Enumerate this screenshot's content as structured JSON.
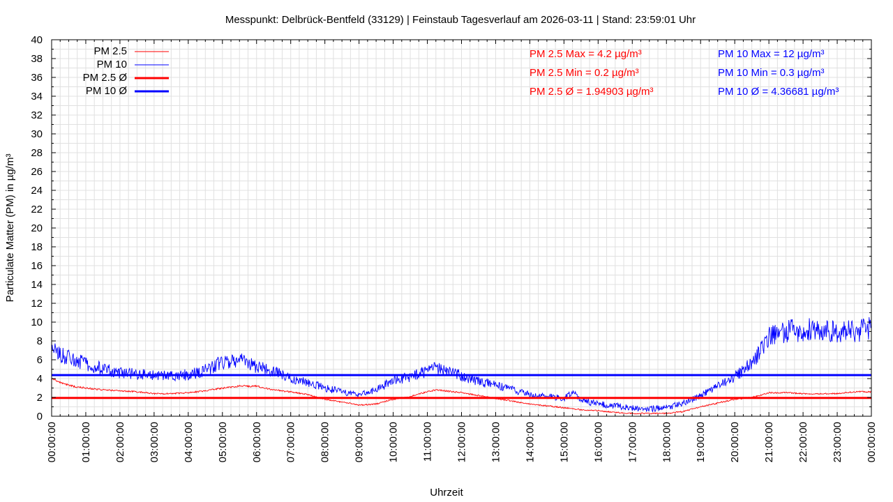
{
  "chart_data": {
    "type": "line",
    "title": "Messpunkt: Delbrück-Bentfeld (33129) | Feinstaub Tagesverlauf am 2026-03-11 | Stand: 23:59:01 Uhr",
    "xlabel": "Uhrzeit",
    "ylabel": "Particulate Matter (PM) in µg/m³",
    "xlim": [
      "00:00:00",
      "24:00:00"
    ],
    "ylim": [
      0,
      40
    ],
    "x_ticks": [
      "00:00:00",
      "01:00:00",
      "02:00:00",
      "03:00:00",
      "04:00:00",
      "05:00:00",
      "06:00:00",
      "07:00:00",
      "08:00:00",
      "09:00:00",
      "10:00:00",
      "11:00:00",
      "12:00:00",
      "13:00:00",
      "14:00:00",
      "15:00:00",
      "16:00:00",
      "17:00:00",
      "18:00:00",
      "19:00:00",
      "20:00:00",
      "21:00:00",
      "22:00:00",
      "23:00:00",
      "00:00:00"
    ],
    "y_ticks": [
      "0",
      "2",
      "4",
      "6",
      "8",
      "10",
      "12",
      "14",
      "16",
      "18",
      "20",
      "22",
      "24",
      "26",
      "28",
      "30",
      "32",
      "34",
      "36",
      "38",
      "40"
    ],
    "grid": true,
    "legend_position": "top-left",
    "legend": [
      {
        "label": "PM 2.5",
        "color": "#ff0000",
        "style": "thin"
      },
      {
        "label": "PM 10",
        "color": "#0000ff",
        "style": "thin"
      },
      {
        "label": "PM 2.5 Ø",
        "color": "#ff0000",
        "style": "thick"
      },
      {
        "label": "PM 10 Ø",
        "color": "#0000ff",
        "style": "thick"
      }
    ],
    "annotations": {
      "pm25": [
        "PM 2.5 Max = 4.2 µg/m³",
        "PM 2.5 Min = 0.2 µg/m³",
        "PM 2.5 Ø = 1.94903 µg/m³"
      ],
      "pm10": [
        "PM 10 Max = 12 µg/m³",
        "PM 10 Min = 0.3 µg/m³",
        "PM 10 Ø = 4.36681 µg/m³"
      ]
    },
    "x_hours": [
      0,
      0.25,
      0.5,
      0.75,
      1,
      1.5,
      2,
      2.5,
      3,
      3.5,
      4,
      4.5,
      5,
      5.5,
      6,
      6.5,
      7,
      7.5,
      8,
      8.5,
      9,
      9.5,
      10,
      10.5,
      11,
      11.25,
      11.5,
      12,
      12.5,
      13,
      13.5,
      14,
      14.5,
      15,
      15.25,
      15.5,
      16,
      16.5,
      17,
      17.5,
      18,
      18.5,
      19,
      19.5,
      20,
      20.5,
      21,
      21.5,
      22,
      22.5,
      23,
      23.5,
      24
    ],
    "series": [
      {
        "name": "PM 2.5",
        "color": "#ff0000",
        "values": [
          4.0,
          3.6,
          3.3,
          3.1,
          3.0,
          2.8,
          2.7,
          2.6,
          2.4,
          2.4,
          2.5,
          2.7,
          3.0,
          3.2,
          3.2,
          2.8,
          2.6,
          2.3,
          1.8,
          1.5,
          1.2,
          1.3,
          1.8,
          2.1,
          2.6,
          2.8,
          2.7,
          2.5,
          2.2,
          1.9,
          1.6,
          1.3,
          1.1,
          0.9,
          0.8,
          0.7,
          0.6,
          0.4,
          0.3,
          0.3,
          0.3,
          0.5,
          1.0,
          1.4,
          1.8,
          2.0,
          2.5,
          2.5,
          2.4,
          2.4,
          2.4,
          2.6,
          2.6
        ]
      },
      {
        "name": "PM 10",
        "color": "#0000ff",
        "values": [
          7.2,
          6.6,
          6.2,
          5.9,
          5.6,
          5.0,
          4.6,
          4.5,
          4.3,
          4.3,
          4.4,
          4.9,
          5.8,
          6.0,
          5.3,
          4.8,
          4.0,
          3.6,
          3.0,
          2.6,
          2.3,
          2.8,
          3.8,
          4.2,
          4.7,
          5.2,
          4.9,
          4.3,
          3.7,
          3.3,
          2.8,
          2.3,
          2.1,
          1.9,
          2.6,
          1.7,
          1.3,
          1.1,
          0.9,
          0.8,
          0.9,
          1.4,
          2.2,
          3.2,
          4.2,
          5.6,
          8.5,
          9.0,
          9.2,
          9.1,
          8.9,
          9.0,
          9.3
        ]
      },
      {
        "name": "PM 2.5 Ø",
        "color": "#ff0000",
        "constant": 1.94903
      },
      {
        "name": "PM 10 Ø",
        "color": "#0000ff",
        "constant": 4.36681
      }
    ]
  }
}
